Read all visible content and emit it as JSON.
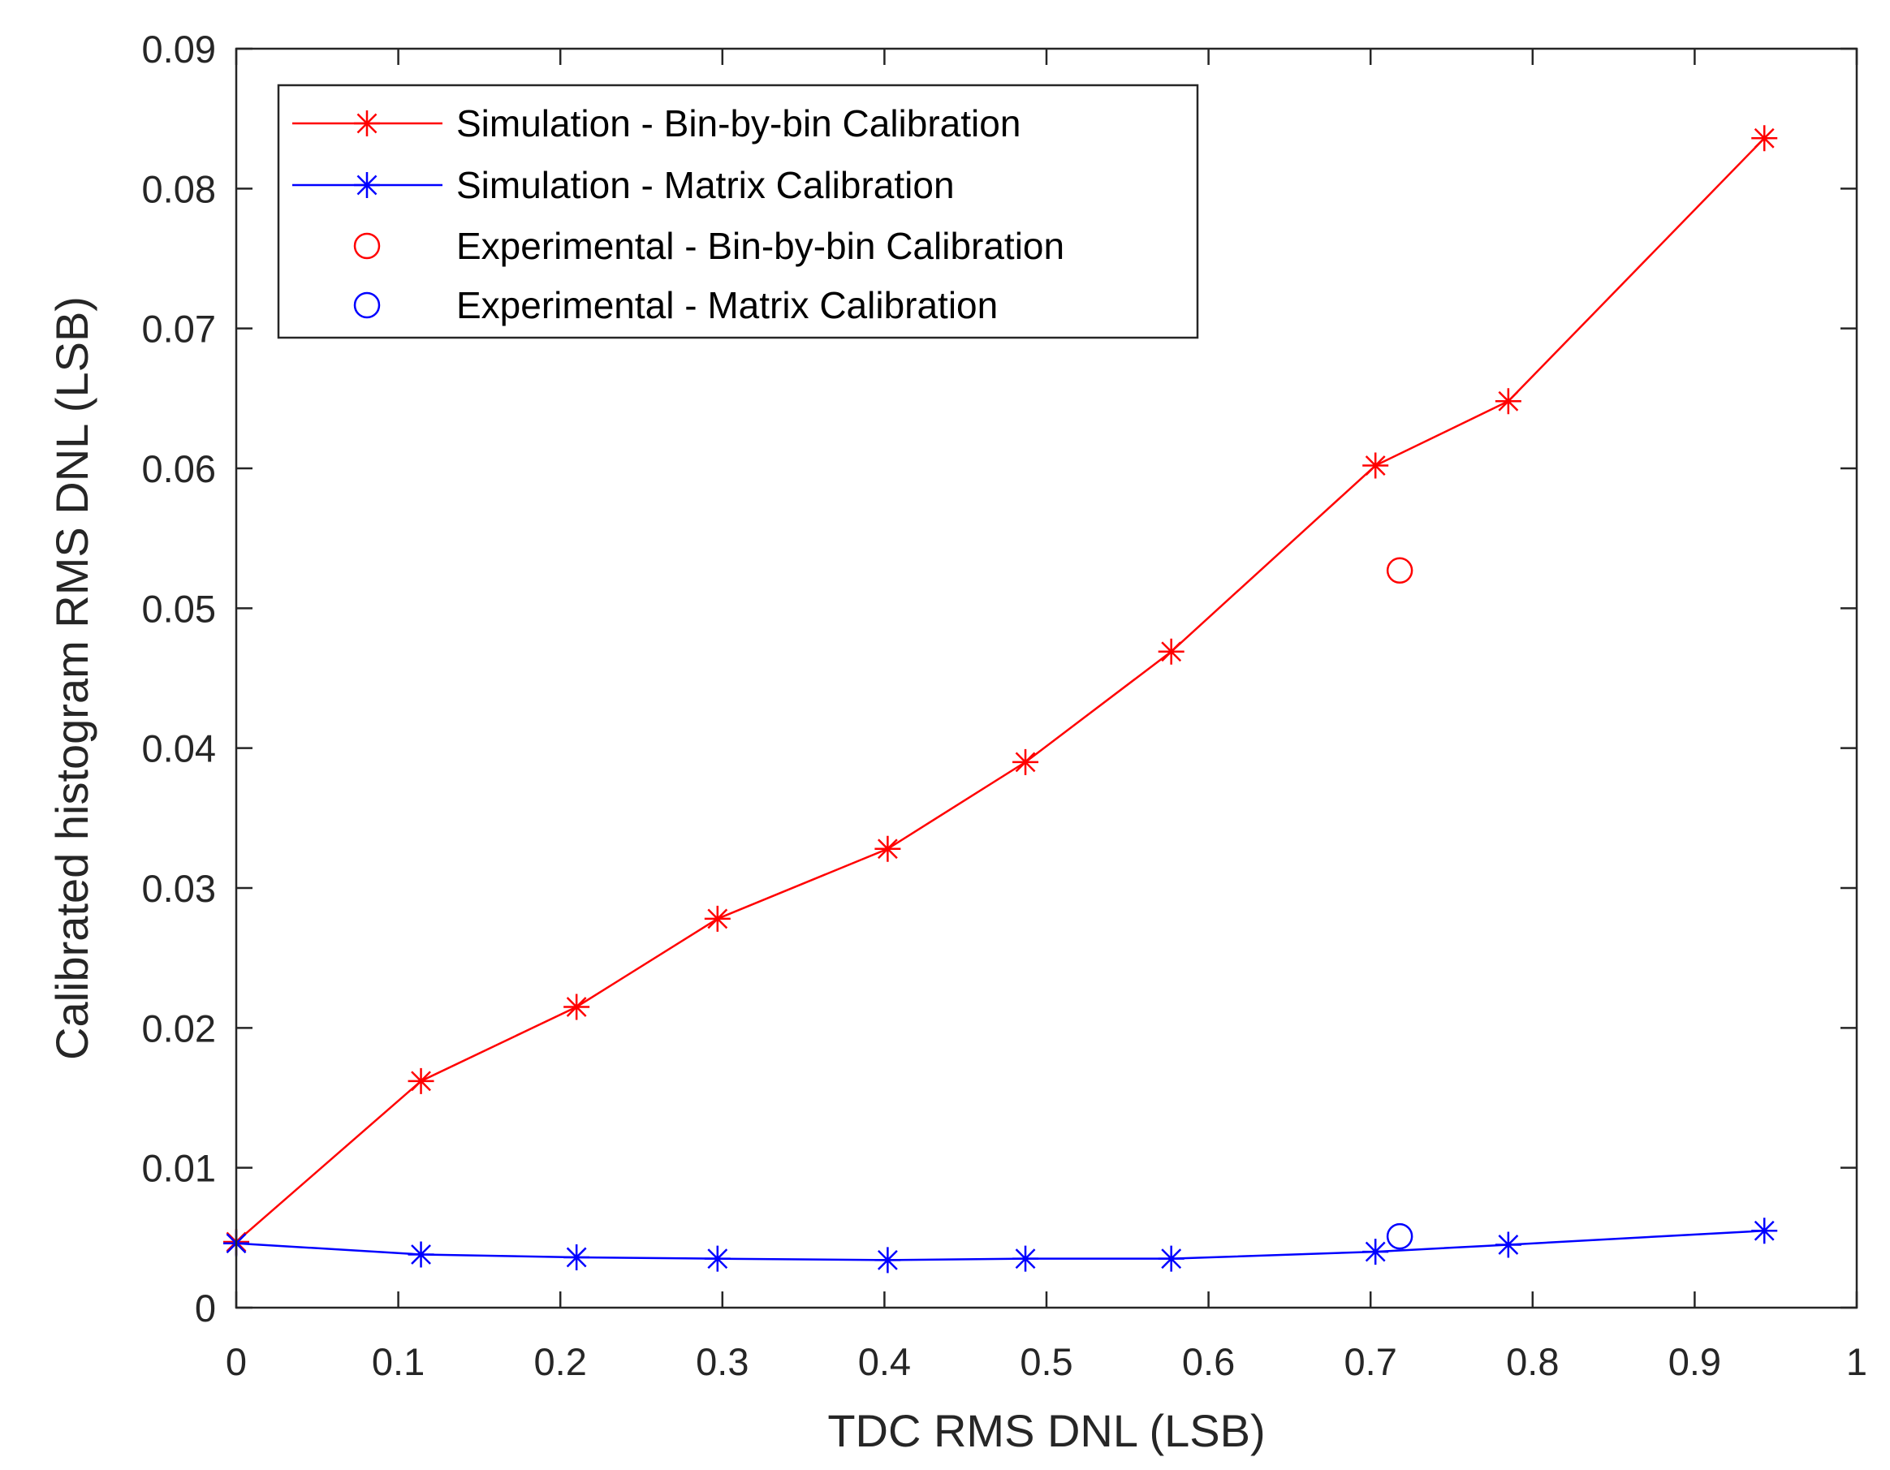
{
  "chart_data": {
    "type": "line",
    "title": "",
    "xlabel": "TDC RMS DNL (LSB)",
    "ylabel": "Calibrated histogram RMS DNL (LSB)",
    "xlim": [
      0,
      1
    ],
    "ylim": [
      0,
      0.09
    ],
    "xticks": [
      0,
      0.1,
      0.2,
      0.3,
      0.4,
      0.5,
      0.6,
      0.7,
      0.8,
      0.9,
      1
    ],
    "xtick_labels": [
      "0",
      "0.1",
      "0.2",
      "0.3",
      "0.4",
      "0.5",
      "0.6",
      "0.7",
      "0.8",
      "0.9",
      "1"
    ],
    "yticks": [
      0,
      0.01,
      0.02,
      0.03,
      0.04,
      0.05,
      0.06,
      0.07,
      0.08,
      0.09
    ],
    "ytick_labels": [
      "0",
      "0.01",
      "0.02",
      "0.03",
      "0.04",
      "0.05",
      "0.06",
      "0.07",
      "0.08",
      "0.09"
    ],
    "grid": false,
    "legend_position": "top-left",
    "series": [
      {
        "name": "Simulation - Bin-by-bin Calibration",
        "color": "#ff0000",
        "marker": "star",
        "line": true,
        "x": [
          0.0,
          0.114,
          0.21,
          0.297,
          0.402,
          0.487,
          0.577,
          0.703,
          0.785,
          0.943
        ],
        "y": [
          0.0047,
          0.0162,
          0.0215,
          0.0278,
          0.0328,
          0.039,
          0.0469,
          0.0602,
          0.0648,
          0.0836
        ]
      },
      {
        "name": "Simulation - Matrix Calibration",
        "color": "#0000ff",
        "marker": "star",
        "line": true,
        "x": [
          0.0,
          0.114,
          0.21,
          0.297,
          0.402,
          0.487,
          0.577,
          0.703,
          0.785,
          0.943
        ],
        "y": [
          0.0046,
          0.0038,
          0.0036,
          0.0035,
          0.0034,
          0.0035,
          0.0035,
          0.004,
          0.0045,
          0.0055
        ]
      },
      {
        "name": "Experimental - Bin-by-bin Calibration",
        "color": "#ff0000",
        "marker": "circle",
        "line": false,
        "x": [
          0.718
        ],
        "y": [
          0.0527
        ]
      },
      {
        "name": "Experimental - Matrix Calibration",
        "color": "#0000ff",
        "marker": "circle",
        "line": false,
        "x": [
          0.718
        ],
        "y": [
          0.0051
        ]
      }
    ]
  }
}
